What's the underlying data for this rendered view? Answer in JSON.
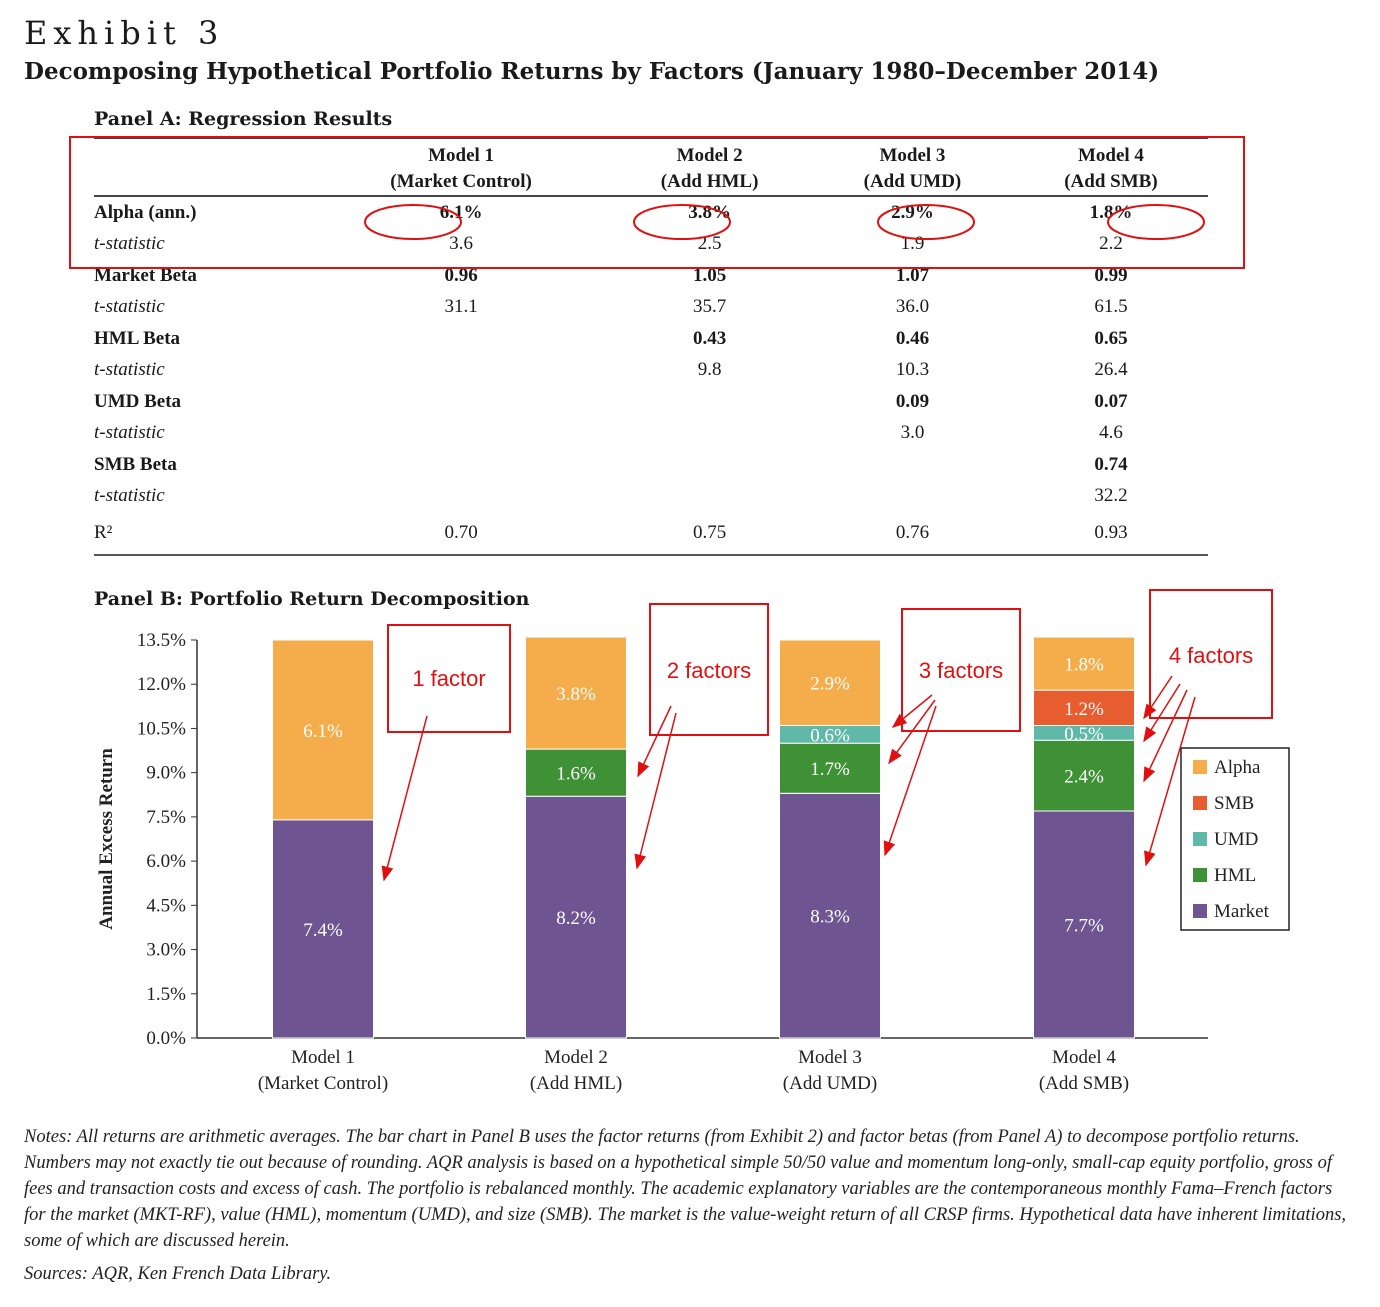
{
  "header": {
    "exhibit": "Exhibit 3",
    "title": "Decomposing Hypothetical Portfolio Returns by Factors (January 1980–December 2014)"
  },
  "panelA": {
    "title": "Panel A: Regression Results",
    "columns": [
      {
        "line1": "Model 1",
        "line2": "(Market Control)"
      },
      {
        "line1": "Model 2",
        "line2": "(Add HML)"
      },
      {
        "line1": "Model 3",
        "line2": "(Add UMD)"
      },
      {
        "line1": "Model 4",
        "line2": "(Add SMB)"
      }
    ],
    "rows": [
      {
        "label": "Alpha (ann.)",
        "bold": true,
        "values": [
          "6.1%",
          "3.8%",
          "2.9%",
          "1.8%"
        ]
      },
      {
        "label": "t-statistic",
        "bold": false,
        "values": [
          "3.6",
          "2.5",
          "1.9",
          "2.2"
        ]
      },
      {
        "label": "Market Beta",
        "bold": true,
        "values": [
          "0.96",
          "1.05",
          "1.07",
          "0.99"
        ]
      },
      {
        "label": "t-statistic",
        "bold": false,
        "values": [
          "31.1",
          "35.7",
          "36.0",
          "61.5"
        ]
      },
      {
        "label": "HML Beta",
        "bold": true,
        "values": [
          "",
          "0.43",
          "0.46",
          "0.65"
        ]
      },
      {
        "label": "t-statistic",
        "bold": false,
        "values": [
          "",
          "9.8",
          "10.3",
          "26.4"
        ]
      },
      {
        "label": "UMD Beta",
        "bold": true,
        "values": [
          "",
          "",
          "0.09",
          "0.07"
        ]
      },
      {
        "label": "t-statistic",
        "bold": false,
        "values": [
          "",
          "",
          "3.0",
          "4.6"
        ]
      },
      {
        "label": "SMB Beta",
        "bold": true,
        "values": [
          "",
          "",
          "",
          "0.74"
        ]
      },
      {
        "label": "t-statistic",
        "bold": false,
        "values": [
          "",
          "",
          "",
          "32.2"
        ]
      },
      {
        "label": "R²",
        "bold": false,
        "values": [
          "0.70",
          "0.75",
          "0.76",
          "0.93"
        ]
      }
    ]
  },
  "panelB": {
    "title": "Panel B: Portfolio Return Decomposition"
  },
  "chart_data": {
    "type": "bar",
    "stacked": true,
    "ylabel": "Annual Excess Return",
    "ylim": [
      0,
      13.5
    ],
    "yticks": [
      "0.0%",
      "1.5%",
      "3.0%",
      "4.5%",
      "6.0%",
      "7.5%",
      "9.0%",
      "10.5%",
      "12.0%",
      "13.5%"
    ],
    "categories": [
      {
        "line1": "Model 1",
        "line2": "(Market Control)"
      },
      {
        "line1": "Model 2",
        "line2": "(Add HML)"
      },
      {
        "line1": "Model 3",
        "line2": "(Add UMD)"
      },
      {
        "line1": "Model 4",
        "line2": "(Add SMB)"
      }
    ],
    "series": [
      {
        "name": "Market",
        "color": "#6e5592",
        "values": [
          7.4,
          8.2,
          8.3,
          7.7
        ],
        "labels": [
          "7.4%",
          "8.2%",
          "8.3%",
          "7.7%"
        ]
      },
      {
        "name": "HML",
        "color": "#3f9136",
        "values": [
          0,
          1.6,
          1.7,
          2.4
        ],
        "labels": [
          "",
          "1.6%",
          "1.7%",
          "2.4%"
        ]
      },
      {
        "name": "UMD",
        "color": "#5fb8a8",
        "values": [
          0,
          0,
          0.6,
          0.5
        ],
        "labels": [
          "",
          "",
          "0.6%",
          "0.5%"
        ]
      },
      {
        "name": "SMB",
        "color": "#e85d30",
        "values": [
          0,
          0,
          0,
          1.2
        ],
        "labels": [
          "",
          "",
          "",
          "1.2%"
        ]
      },
      {
        "name": "Alpha",
        "color": "#f5ad4b",
        "values": [
          6.1,
          3.8,
          2.9,
          1.8
        ],
        "labels": [
          "6.1%",
          "3.8%",
          "2.9%",
          "1.8%"
        ]
      }
    ],
    "legend": {
      "position": "right",
      "order": [
        "Alpha",
        "SMB",
        "UMD",
        "HML",
        "Market"
      ]
    },
    "annotations": [
      "1 factor",
      "2 factors",
      "3 factors",
      "4 factors"
    ],
    "annotation_color": "#e01010"
  },
  "notes": "Notes: All returns are arithmetic averages. The bar chart in Panel B uses the factor returns (from Exhibit 2) and factor betas (from Panel A) to decompose portfolio returns. Numbers may not exactly tie out because of rounding. AQR analysis is based on a hypothetical simple 50/50 value and momentum long-only, small-cap equity portfolio, gross of fees and transaction costs and excess of cash. The portfolio is rebalanced monthly. The academic explanatory variables are the contemporaneous monthly Fama–French factors for the market (MKT-RF), value (HML), momentum (UMD), and size (SMB). The market is the value-weight return of all CRSP firms. Hypothetical data have inherent limitations, some of which are discussed herein.",
  "sources": "Sources: AQR, Ken French Data Library."
}
